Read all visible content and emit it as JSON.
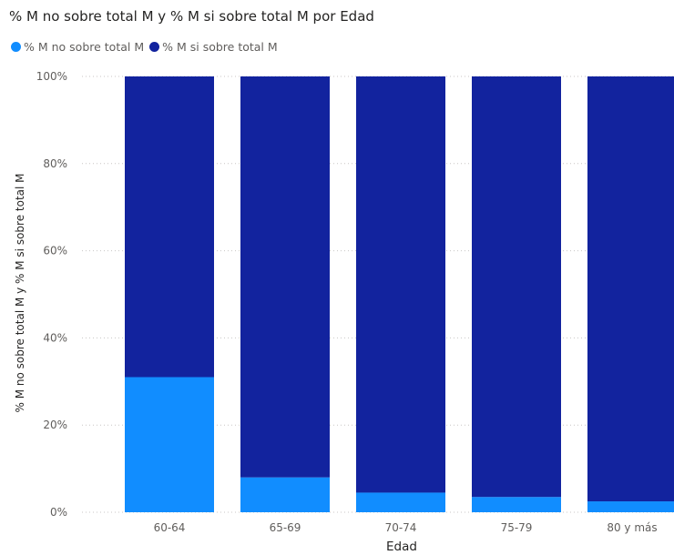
{
  "chart_data": {
    "type": "bar",
    "stacked": true,
    "normalized": true,
    "title": "% M no sobre total M y % M si sobre total M por Edad",
    "xlabel": "Edad",
    "ylabel": "% M no sobre total M y % M si sobre total M",
    "categories": [
      "60-64",
      "65-69",
      "70-74",
      "75-79",
      "80 y más"
    ],
    "series": [
      {
        "name": "% M no sobre total M",
        "color": "#118dff",
        "values": [
          31,
          8,
          4.5,
          3.5,
          2.5
        ]
      },
      {
        "name": "% M si sobre total M",
        "color": "#12239e",
        "values": [
          69,
          92,
          95.5,
          96.5,
          97.5
        ]
      }
    ],
    "yticks": [
      "0%",
      "20%",
      "40%",
      "60%",
      "80%",
      "100%"
    ],
    "ylim": [
      0,
      100
    ],
    "grid": true,
    "legend_position": "top-left"
  }
}
